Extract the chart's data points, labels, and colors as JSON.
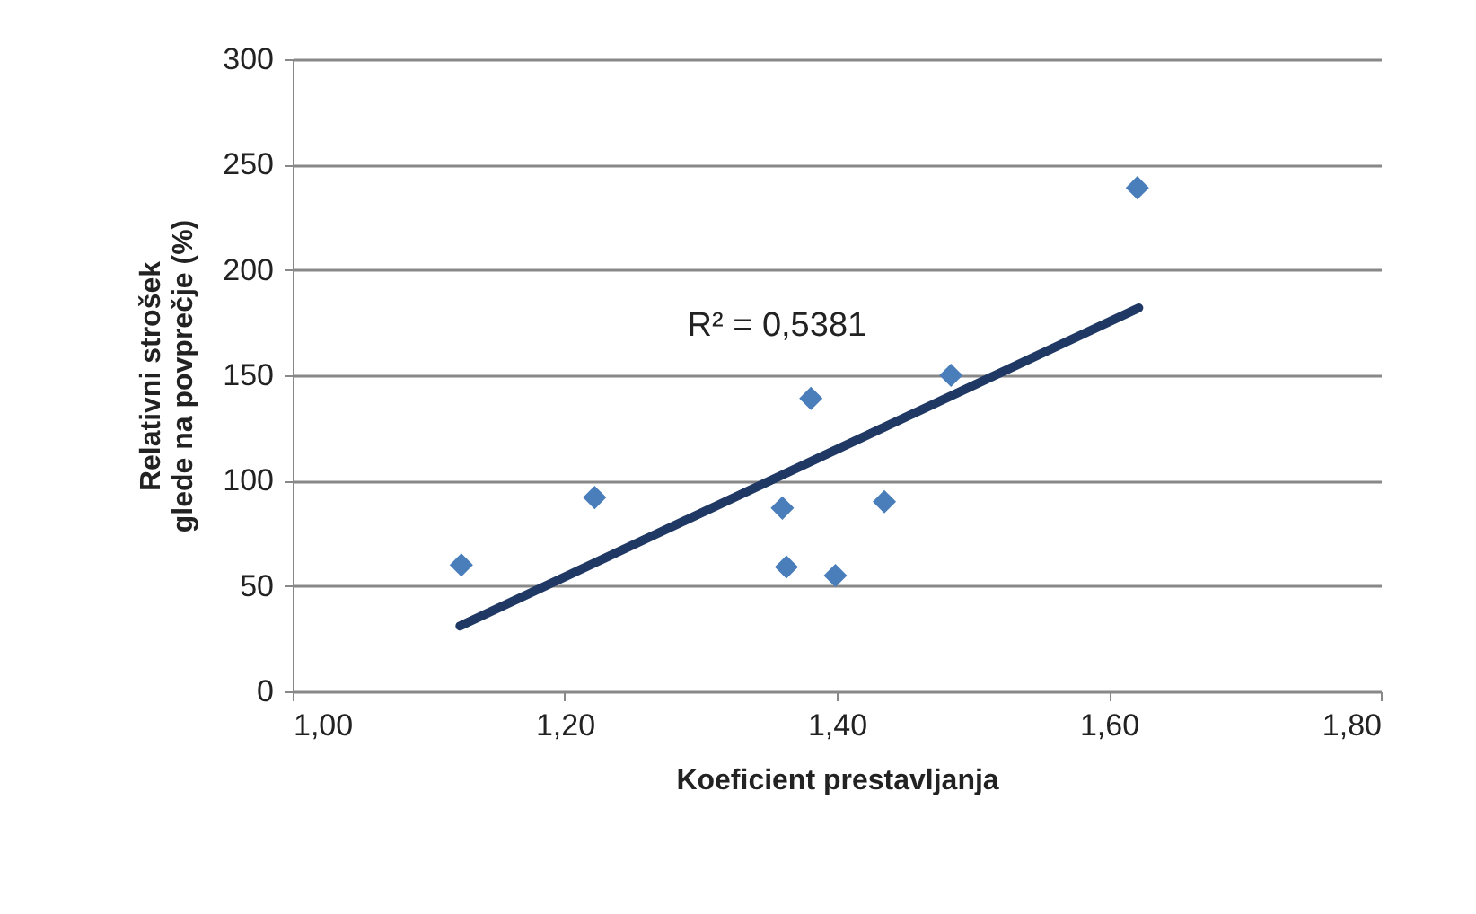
{
  "chart_data": {
    "type": "scatter",
    "xlabel": "Koeficient prestavljanja",
    "ylabel": "Relativni strošek glede na povprečje (%)",
    "xlim": [
      1.0,
      1.8
    ],
    "xticks": [
      {
        "value": 1.0,
        "label": "1,00"
      },
      {
        "value": 1.2,
        "label": "1,20"
      },
      {
        "value": 1.4,
        "label": "1,40"
      },
      {
        "value": 1.6,
        "label": "1,60"
      },
      {
        "value": 1.8,
        "label": "1,80"
      }
    ],
    "ylim": [
      0,
      300
    ],
    "yticks": [
      0,
      50,
      100,
      150,
      200,
      250,
      300
    ],
    "grid": "y",
    "marker": "diamond",
    "annotations": [
      "R² = 0,5381"
    ],
    "series": [
      {
        "color": "#4a7ebb",
        "x": [
          1.124,
          1.222,
          1.36,
          1.363,
          1.381,
          1.399,
          1.435,
          1.484,
          1.621
        ],
        "values": [
          60,
          92,
          87,
          59,
          139,
          55,
          90,
          150,
          239
        ]
      },
      {
        "type": "line",
        "marker": "none",
        "color": "#1f3864",
        "x": [
          1.123,
          1.622
        ],
        "values": [
          31,
          182
        ]
      }
    ]
  }
}
